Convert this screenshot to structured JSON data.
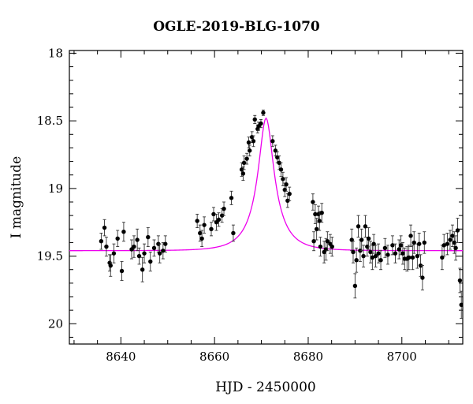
{
  "chart_data": {
    "type": "scatter",
    "title": "OGLE-2019-BLG-1070",
    "xlabel": "HJD - 2450000",
    "ylabel": "I magnitude",
    "xlim": [
      8629,
      8713
    ],
    "ylim": [
      20.15,
      17.98
    ],
    "y_inverted": true,
    "xticks": [
      8640,
      8660,
      8680,
      8700
    ],
    "yticks": [
      18,
      18.5,
      19,
      19.5,
      20
    ],
    "ytick_labels": [
      "18",
      "18.5",
      "19",
      "19.5",
      "20"
    ],
    "model_color": "#ee00ee",
    "marker_color": "#000000",
    "model": {
      "t0": 8671.0,
      "u0": 0.3,
      "tE": 5.5,
      "base_mag": 19.46
    },
    "series": [
      {
        "values": [
          [
            8635.8,
            19.39,
            0.06
          ],
          [
            8636.5,
            19.29,
            0.06
          ],
          [
            8636.9,
            19.43,
            0.07
          ],
          [
            8637.6,
            19.55,
            0.06
          ],
          [
            8637.8,
            19.57,
            0.08
          ],
          [
            8638.5,
            19.48,
            0.07
          ],
          [
            8639.3,
            19.37,
            0.06
          ],
          [
            8640.2,
            19.61,
            0.07
          ],
          [
            8640.6,
            19.32,
            0.07
          ],
          [
            8642.3,
            19.45,
            0.07
          ],
          [
            8642.8,
            19.43,
            0.08
          ],
          [
            8643.5,
            19.38,
            0.08
          ],
          [
            8643.9,
            19.5,
            0.06
          ],
          [
            8644.6,
            19.6,
            0.09
          ],
          [
            8645.0,
            19.48,
            0.07
          ],
          [
            8645.8,
            19.36,
            0.07
          ],
          [
            8646.3,
            19.54,
            0.07
          ],
          [
            8647.1,
            19.44,
            0.06
          ],
          [
            8648.0,
            19.41,
            0.06
          ],
          [
            8648.3,
            19.48,
            0.07
          ],
          [
            8649.0,
            19.46,
            0.06
          ],
          [
            8649.5,
            19.41,
            0.06
          ],
          [
            8656.3,
            19.24,
            0.05
          ],
          [
            8656.9,
            19.33,
            0.06
          ],
          [
            8657.3,
            19.37,
            0.06
          ],
          [
            8657.8,
            19.27,
            0.06
          ],
          [
            8659.3,
            19.3,
            0.05
          ],
          [
            8659.8,
            19.19,
            0.05
          ],
          [
            8660.4,
            19.25,
            0.06
          ],
          [
            8660.9,
            19.23,
            0.05
          ],
          [
            8661.6,
            19.2,
            0.05
          ],
          [
            8662.0,
            19.15,
            0.05
          ],
          [
            8663.6,
            19.07,
            0.05
          ],
          [
            8664.0,
            19.33,
            0.06
          ],
          [
            8665.8,
            18.86,
            0.05
          ],
          [
            8666.1,
            18.89,
            0.05
          ],
          [
            8666.3,
            18.81,
            0.05
          ],
          [
            8666.9,
            18.78,
            0.04
          ],
          [
            8667.3,
            18.66,
            0.04
          ],
          [
            8667.5,
            18.72,
            0.04
          ],
          [
            8668.0,
            18.62,
            0.04
          ],
          [
            8668.3,
            18.65,
            0.04
          ],
          [
            8668.6,
            18.49,
            0.03
          ],
          [
            8669.2,
            18.56,
            0.03
          ],
          [
            8669.4,
            18.54,
            0.03
          ],
          [
            8669.9,
            18.52,
            0.03
          ],
          [
            8670.4,
            18.44,
            0.02
          ],
          [
            8672.4,
            18.65,
            0.04
          ],
          [
            8673.0,
            18.72,
            0.04
          ],
          [
            8673.4,
            18.77,
            0.04
          ],
          [
            8673.8,
            18.81,
            0.05
          ],
          [
            8674.2,
            18.86,
            0.05
          ],
          [
            8674.6,
            18.93,
            0.05
          ],
          [
            8675.0,
            19.01,
            0.05
          ],
          [
            8675.3,
            18.97,
            0.05
          ],
          [
            8675.6,
            19.09,
            0.05
          ],
          [
            8676.0,
            19.04,
            0.05
          ],
          [
            8681.0,
            19.1,
            0.06
          ],
          [
            8681.2,
            19.39,
            0.07
          ],
          [
            8681.5,
            19.19,
            0.07
          ],
          [
            8681.8,
            19.3,
            0.08
          ],
          [
            8682.2,
            19.19,
            0.06
          ],
          [
            8682.4,
            19.24,
            0.07
          ],
          [
            8682.6,
            19.43,
            0.07
          ],
          [
            8682.9,
            19.18,
            0.07
          ],
          [
            8683.4,
            19.47,
            0.08
          ],
          [
            8683.8,
            19.45,
            0.08
          ],
          [
            8684.1,
            19.39,
            0.07
          ],
          [
            8684.7,
            19.41,
            0.07
          ],
          [
            8685.1,
            19.43,
            0.07
          ],
          [
            8689.3,
            19.38,
            0.08
          ],
          [
            8689.6,
            19.47,
            0.08
          ],
          [
            8690.0,
            19.72,
            0.09
          ],
          [
            8690.3,
            19.53,
            0.09
          ],
          [
            8690.7,
            19.28,
            0.08
          ],
          [
            8691.1,
            19.46,
            0.08
          ],
          [
            8691.4,
            19.38,
            0.08
          ],
          [
            8691.8,
            19.5,
            0.08
          ],
          [
            8692.2,
            19.28,
            0.08
          ],
          [
            8692.6,
            19.43,
            0.07
          ],
          [
            8692.9,
            19.37,
            0.08
          ],
          [
            8693.3,
            19.47,
            0.08
          ],
          [
            8693.7,
            19.51,
            0.09
          ],
          [
            8694.0,
            19.41,
            0.07
          ],
          [
            8694.4,
            19.5,
            0.08
          ],
          [
            8695.0,
            19.48,
            0.07
          ],
          [
            8695.5,
            19.53,
            0.07
          ],
          [
            8696.4,
            19.44,
            0.07
          ],
          [
            8697.0,
            19.49,
            0.07
          ],
          [
            8698.0,
            19.42,
            0.07
          ],
          [
            8698.6,
            19.48,
            0.07
          ],
          [
            8699.4,
            19.45,
            0.07
          ],
          [
            8699.8,
            19.42,
            0.07
          ],
          [
            8700.2,
            19.48,
            0.08
          ],
          [
            8700.6,
            19.52,
            0.08
          ],
          [
            8701.1,
            19.52,
            0.09
          ],
          [
            8701.5,
            19.51,
            0.09
          ],
          [
            8701.9,
            19.35,
            0.08
          ],
          [
            8702.3,
            19.51,
            0.09
          ],
          [
            8702.6,
            19.4,
            0.08
          ],
          [
            8703.3,
            19.5,
            0.09
          ],
          [
            8703.7,
            19.41,
            0.08
          ],
          [
            8704.0,
            19.57,
            0.08
          ],
          [
            8704.4,
            19.66,
            0.09
          ],
          [
            8704.8,
            19.4,
            0.08
          ],
          [
            8708.6,
            19.51,
            0.09
          ],
          [
            8709.0,
            19.42,
            0.08
          ],
          [
            8709.7,
            19.41,
            0.08
          ],
          [
            8710.3,
            19.38,
            0.07
          ],
          [
            8710.8,
            19.35,
            0.08
          ],
          [
            8711.2,
            19.4,
            0.08
          ],
          [
            8711.5,
            19.44,
            0.09
          ],
          [
            8711.9,
            19.31,
            0.09
          ],
          [
            8712.4,
            19.68,
            0.09
          ],
          [
            8712.7,
            19.86,
            0.1
          ]
        ]
      }
    ]
  }
}
